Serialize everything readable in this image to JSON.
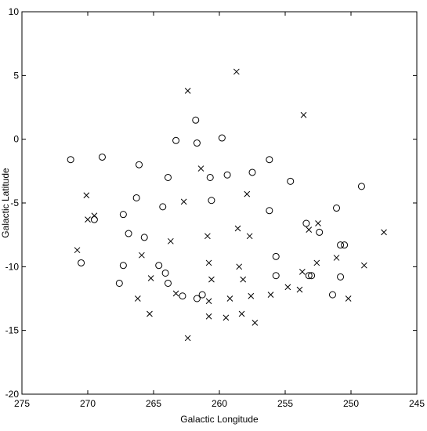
{
  "chart_data": {
    "type": "scatter",
    "xlabel": "Galactic Longitude",
    "ylabel": "Galactic Latitude",
    "xlim": [
      275,
      245
    ],
    "ylim": [
      -20,
      10
    ],
    "xticks": [
      275,
      270,
      265,
      260,
      255,
      250,
      245
    ],
    "yticks": [
      -20,
      -15,
      -10,
      -5,
      0,
      5,
      10
    ],
    "grid": false,
    "series": [
      {
        "marker": "circle",
        "color": "#000000",
        "x": [
          271.3,
          268.9,
          266.1,
          263.3,
          261.8,
          261.7,
          259.8,
          263.9,
          260.7,
          259.4,
          257.5,
          256.2,
          254.6,
          249.2,
          266.3,
          264.3,
          260.6,
          256.2,
          251.1,
          267.3,
          269.5,
          266.9,
          265.7,
          253.4,
          252.4,
          250.8,
          250.5,
          270.5,
          267.3,
          264.6,
          255.7,
          264.1,
          267.6,
          263.9,
          255.7,
          253.2,
          253.0,
          250.8,
          262.8,
          261.7,
          261.3,
          251.4
        ],
        "values": [
          -1.6,
          -1.4,
          -2.0,
          -0.1,
          1.5,
          -0.3,
          0.1,
          -3.0,
          -3.0,
          -2.8,
          -2.6,
          -1.6,
          -3.3,
          -3.7,
          -4.6,
          -5.3,
          -4.8,
          -5.6,
          -5.4,
          -5.9,
          -6.3,
          -7.4,
          -7.7,
          -6.6,
          -7.3,
          -8.3,
          -8.3,
          -9.7,
          -9.9,
          -9.9,
          -9.2,
          -10.5,
          -11.3,
          -11.3,
          -10.7,
          -10.7,
          -10.7,
          -10.8,
          -12.3,
          -12.5,
          -12.2,
          -12.2
        ]
      },
      {
        "marker": "cross",
        "color": "#000000",
        "x": [
          262.4,
          258.7,
          253.6,
          261.4,
          270.1,
          257.9,
          262.7,
          270.0,
          269.5,
          253.2,
          252.5,
          258.6,
          257.7,
          260.9,
          263.7,
          247.5,
          270.8,
          265.9,
          260.8,
          258.5,
          252.6,
          251.1,
          249.0,
          265.2,
          260.6,
          258.2,
          253.7,
          266.2,
          263.3,
          260.8,
          259.2,
          257.6,
          256.1,
          254.8,
          253.9,
          250.2,
          265.3,
          260.8,
          259.5,
          258.3,
          257.3,
          262.4
        ],
        "values": [
          3.8,
          5.3,
          1.9,
          -2.3,
          -4.4,
          -4.3,
          -4.9,
          -6.3,
          -6.0,
          -7.1,
          -6.6,
          -7.0,
          -7.6,
          -7.6,
          -8.0,
          -7.3,
          -8.7,
          -9.1,
          -9.7,
          -10.0,
          -9.7,
          -9.3,
          -9.9,
          -10.9,
          -11.0,
          -11.0,
          -10.4,
          -12.5,
          -12.1,
          -12.7,
          -12.5,
          -12.3,
          -12.2,
          -11.6,
          -11.8,
          -12.5,
          -13.7,
          -13.9,
          -14.0,
          -13.7,
          -14.4,
          -15.6
        ]
      }
    ]
  }
}
